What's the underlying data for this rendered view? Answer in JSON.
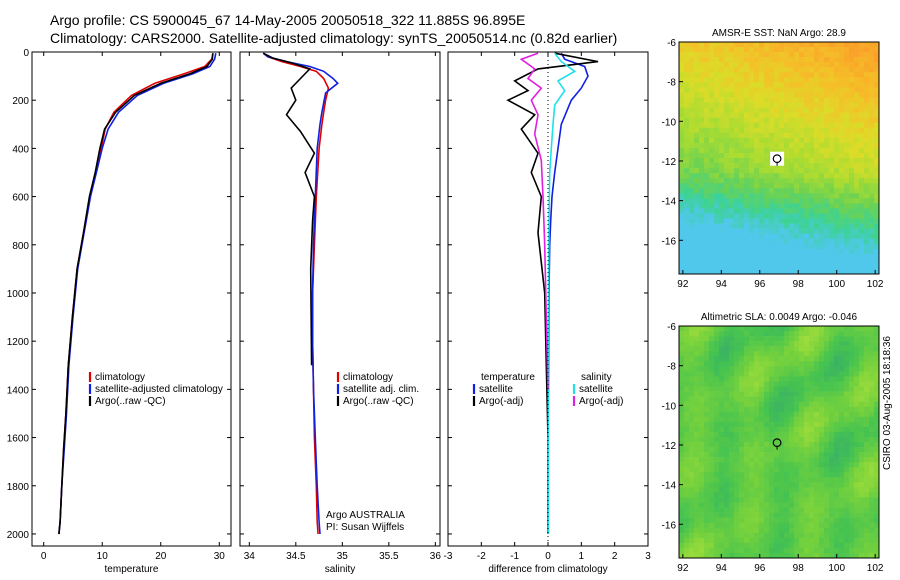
{
  "header": {
    "line1": "Argo profile: CS 5900045_67 14-May-2005 20050518_322 11.885S 96.895E",
    "line2": "Climatology: CARS2000. Satellite-adjusted climatology: synTS_20050514.nc (0.82d earlier)"
  },
  "credit": "CSIRO 03-Aug-2005 18:18:36",
  "colors": {
    "red": "#e00000",
    "blue": "#1020e0",
    "black": "#000000",
    "magenta": "#e020e0",
    "cyan": "#20e0e8"
  },
  "chart_data": [
    {
      "type": "line",
      "name": "temperature-profile",
      "xlabel": "temperature",
      "ylabel": "",
      "xlim": [
        -2,
        32
      ],
      "ylim": [
        2050,
        0
      ],
      "xticks": [
        0,
        10,
        20,
        30
      ],
      "yticks": [
        0,
        200,
        400,
        600,
        800,
        1000,
        1200,
        1400,
        1600,
        1800,
        2000
      ],
      "series": [
        {
          "name": "climatology",
          "color": "red",
          "x": [
            28.9,
            28.7,
            27.5,
            24,
            19,
            15,
            12,
            10.5,
            9.8,
            8.9,
            7.9,
            6.8,
            5.7,
            4.9,
            4.2,
            3.8,
            3.4,
            3.1,
            2.8,
            2.6
          ],
          "y": [
            5,
            30,
            60,
            90,
            130,
            180,
            250,
            320,
            400,
            500,
            600,
            750,
            900,
            1100,
            1300,
            1500,
            1650,
            1800,
            1950,
            2000
          ]
        },
        {
          "name": "satellite-adjusted climatology",
          "color": "blue",
          "x": [
            29.4,
            29.2,
            28.4,
            25.5,
            20.5,
            16,
            12.8,
            11,
            10,
            9,
            8,
            6.9,
            5.8,
            5,
            4.3,
            3.9,
            3.5,
            3.1,
            2.8,
            2.6
          ],
          "y": [
            5,
            30,
            60,
            90,
            130,
            180,
            250,
            320,
            400,
            500,
            600,
            750,
            900,
            1100,
            1300,
            1500,
            1650,
            1800,
            1950,
            2000
          ]
        },
        {
          "name": "Argo(..raw -QC)",
          "color": "black",
          "x": [
            28.9,
            28.8,
            27.9,
            25,
            20,
            15.5,
            12.3,
            10.4,
            9.6,
            8.8,
            7.8,
            6.8,
            5.7,
            4.9,
            4.2,
            3.8,
            3.4,
            3.1,
            2.8,
            2.6
          ],
          "y": [
            5,
            30,
            60,
            90,
            130,
            180,
            250,
            320,
            400,
            500,
            600,
            750,
            900,
            1100,
            1300,
            1500,
            1650,
            1800,
            1950,
            2000
          ]
        }
      ],
      "legend": [
        "climatology",
        "satellite-adjusted climatology",
        "Argo(..raw -QC)"
      ]
    },
    {
      "type": "line",
      "name": "salinity-profile",
      "xlabel": "salinity",
      "xlim": [
        33.9,
        36.05
      ],
      "ylim": [
        2050,
        0
      ],
      "xticks": [
        34,
        34.5,
        35,
        35.5,
        36
      ],
      "series": [
        {
          "name": "climatology",
          "color": "red",
          "x": [
            34.15,
            34.2,
            34.35,
            34.55,
            34.72,
            34.8,
            34.85,
            34.82,
            34.8,
            34.78,
            34.75,
            34.72,
            34.7,
            34.68,
            34.68,
            34.69,
            34.7,
            34.72,
            34.73,
            34.74
          ],
          "y": [
            5,
            20,
            40,
            60,
            80,
            110,
            150,
            200,
            250,
            300,
            400,
            600,
            800,
            1000,
            1200,
            1400,
            1600,
            1800,
            1950,
            2000
          ]
        },
        {
          "name": "satellite adj. clim.",
          "color": "blue",
          "x": [
            34.15,
            34.2,
            34.4,
            34.65,
            34.8,
            34.9,
            34.95,
            34.82,
            34.78,
            34.76,
            34.73,
            34.71,
            34.69,
            34.68,
            34.68,
            34.69,
            34.71,
            34.73,
            34.75,
            34.76
          ],
          "y": [
            5,
            20,
            40,
            60,
            80,
            110,
            130,
            170,
            250,
            300,
            400,
            600,
            800,
            1000,
            1200,
            1400,
            1600,
            1800,
            1950,
            2000
          ]
        },
        {
          "name": "Argo(..raw -QC)",
          "color": "black",
          "x": [
            34.15,
            34.25,
            34.45,
            34.65,
            34.55,
            34.45,
            34.5,
            34.4,
            34.55,
            34.7,
            34.6,
            34.7,
            34.68,
            34.66,
            34.67
          ],
          "y": [
            5,
            25,
            45,
            70,
            110,
            150,
            200,
            260,
            330,
            420,
            500,
            600,
            700,
            900,
            1300
          ]
        }
      ],
      "legend": [
        "climatology",
        "satellite adj. clim.",
        "Argo(..raw -QC)"
      ],
      "annotations": [
        "Argo AUSTRALIA",
        "PI: Susan Wijffels"
      ]
    },
    {
      "type": "line",
      "name": "difference-profile",
      "xlabel": "difference from climatology",
      "xlim": [
        -3,
        3
      ],
      "ylim": [
        2050,
        0
      ],
      "xticks": [
        -3,
        -2,
        -1,
        0,
        1,
        2,
        3
      ],
      "series": [
        {
          "name": "temperature satellite",
          "color": "blue",
          "x": [
            0.4,
            0.5,
            1.1,
            1.2,
            1.0,
            0.7,
            0.4,
            0.3,
            0.2,
            0.12,
            0.08,
            0.05,
            0.03,
            0.02,
            0.01,
            0.01
          ],
          "y": [
            5,
            30,
            60,
            100,
            150,
            200,
            300,
            400,
            500,
            600,
            700,
            800,
            1000,
            1200,
            1500,
            2000
          ]
        },
        {
          "name": "temperature Argo(-adj)",
          "color": "black",
          "x": [
            0.2,
            1.5,
            -0.3,
            -1.0,
            -0.6,
            -1.2,
            -0.4,
            -0.8,
            -0.3,
            -0.5,
            -0.2,
            -0.3,
            -0.1,
            -0.05,
            0,
            0
          ],
          "y": [
            5,
            40,
            70,
            120,
            160,
            200,
            260,
            320,
            420,
            500,
            600,
            750,
            1000,
            1300,
            1600,
            2000
          ]
        },
        {
          "name": "salinity satellite",
          "color": "cyan",
          "x": [
            0.2,
            0.4,
            0.8,
            0.3,
            0.5,
            0.2,
            0.15,
            0.1,
            0.05,
            0.03,
            0.02,
            0.01,
            0.01,
            0.01
          ],
          "y": [
            5,
            40,
            80,
            120,
            160,
            220,
            300,
            400,
            500,
            700,
            900,
            1200,
            1600,
            2000
          ]
        },
        {
          "name": "salinity Argo(-adj)",
          "color": "magenta",
          "x": [
            -0.3,
            -0.8,
            -0.4,
            -0.6,
            -0.2,
            -0.5,
            -0.3,
            -0.4,
            -0.2,
            -0.15,
            -0.1,
            -0.05,
            0
          ],
          "y": [
            5,
            30,
            70,
            110,
            150,
            200,
            260,
            340,
            450,
            600,
            800,
            1100,
            1400
          ]
        }
      ],
      "legend_left_title": "temperature",
      "legend_left": [
        "satellite",
        "Argo(-adj)"
      ],
      "legend_right_title": "salinity",
      "legend_right": [
        "satellite",
        "Argo(-adj)"
      ]
    },
    {
      "type": "heatmap",
      "name": "sst-map",
      "title": "AMSR-E SST: NaN Argo: 28.9",
      "xlim": [
        91.8,
        102.2
      ],
      "ylim": [
        -17.7,
        -6
      ],
      "xticks": [
        92,
        94,
        96,
        98,
        100,
        102
      ],
      "yticks": [
        -6,
        -8,
        -10,
        -12,
        -14,
        -16
      ],
      "marker": {
        "lon": 96.9,
        "lat": -11.885
      }
    },
    {
      "type": "heatmap",
      "name": "sla-map",
      "title": "Altimetric SLA: 0.0049 Argo: -0.046",
      "xlim": [
        91.8,
        102.2
      ],
      "ylim": [
        -17.7,
        -6
      ],
      "xticks": [
        92,
        94,
        96,
        98,
        100,
        102
      ],
      "yticks": [
        -6,
        -8,
        -10,
        -12,
        -14,
        -16
      ],
      "marker": {
        "lon": 96.9,
        "lat": -11.885
      }
    }
  ]
}
